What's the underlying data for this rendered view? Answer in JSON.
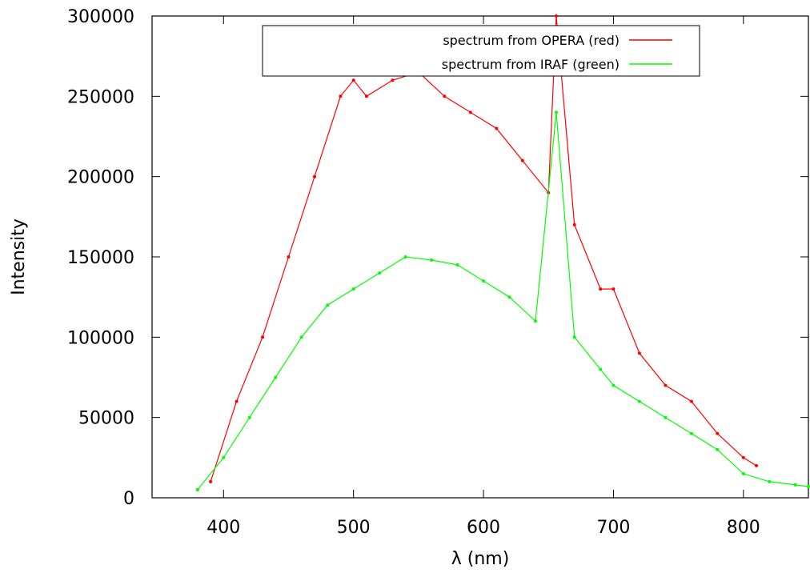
{
  "chart_data": {
    "type": "scatter",
    "xlabel": "λ (nm)",
    "ylabel": "Intensity",
    "xlim": [
      345,
      850
    ],
    "ylim": [
      0,
      300000
    ],
    "x_ticks": [
      400,
      500,
      600,
      700,
      800
    ],
    "y_ticks": [
      0,
      50000,
      100000,
      150000,
      200000,
      250000,
      300000
    ],
    "grid": false,
    "legend": {
      "position": "top-center",
      "entries": [
        {
          "label": "spectrum from OPERA (red)",
          "color": "#ff0000"
        },
        {
          "label": "spectrum from IRAF (green)",
          "color": "#00ff00"
        }
      ]
    },
    "series": [
      {
        "name": "spectrum from OPERA (red)",
        "color": "#ff0000",
        "x": [
          390,
          410,
          430,
          450,
          470,
          490,
          500,
          510,
          530,
          550,
          570,
          590,
          610,
          630,
          650,
          656,
          670,
          690,
          700,
          720,
          740,
          760,
          780,
          800,
          810
        ],
        "y": [
          10000,
          60000,
          100000,
          150000,
          200000,
          250000,
          260000,
          250000,
          260000,
          265000,
          250000,
          240000,
          230000,
          210000,
          190000,
          300000,
          170000,
          130000,
          130000,
          90000,
          70000,
          60000,
          40000,
          25000,
          20000
        ]
      },
      {
        "name": "spectrum from IRAF (green)",
        "color": "#00ff00",
        "x": [
          380,
          400,
          420,
          440,
          460,
          480,
          500,
          520,
          540,
          560,
          580,
          600,
          620,
          640,
          656,
          670,
          690,
          700,
          720,
          740,
          760,
          780,
          800,
          820,
          840,
          850
        ],
        "y": [
          5000,
          25000,
          50000,
          75000,
          100000,
          120000,
          130000,
          140000,
          150000,
          148000,
          145000,
          135000,
          125000,
          110000,
          240000,
          100000,
          80000,
          70000,
          60000,
          50000,
          40000,
          30000,
          15000,
          10000,
          8000,
          7000
        ]
      }
    ]
  }
}
